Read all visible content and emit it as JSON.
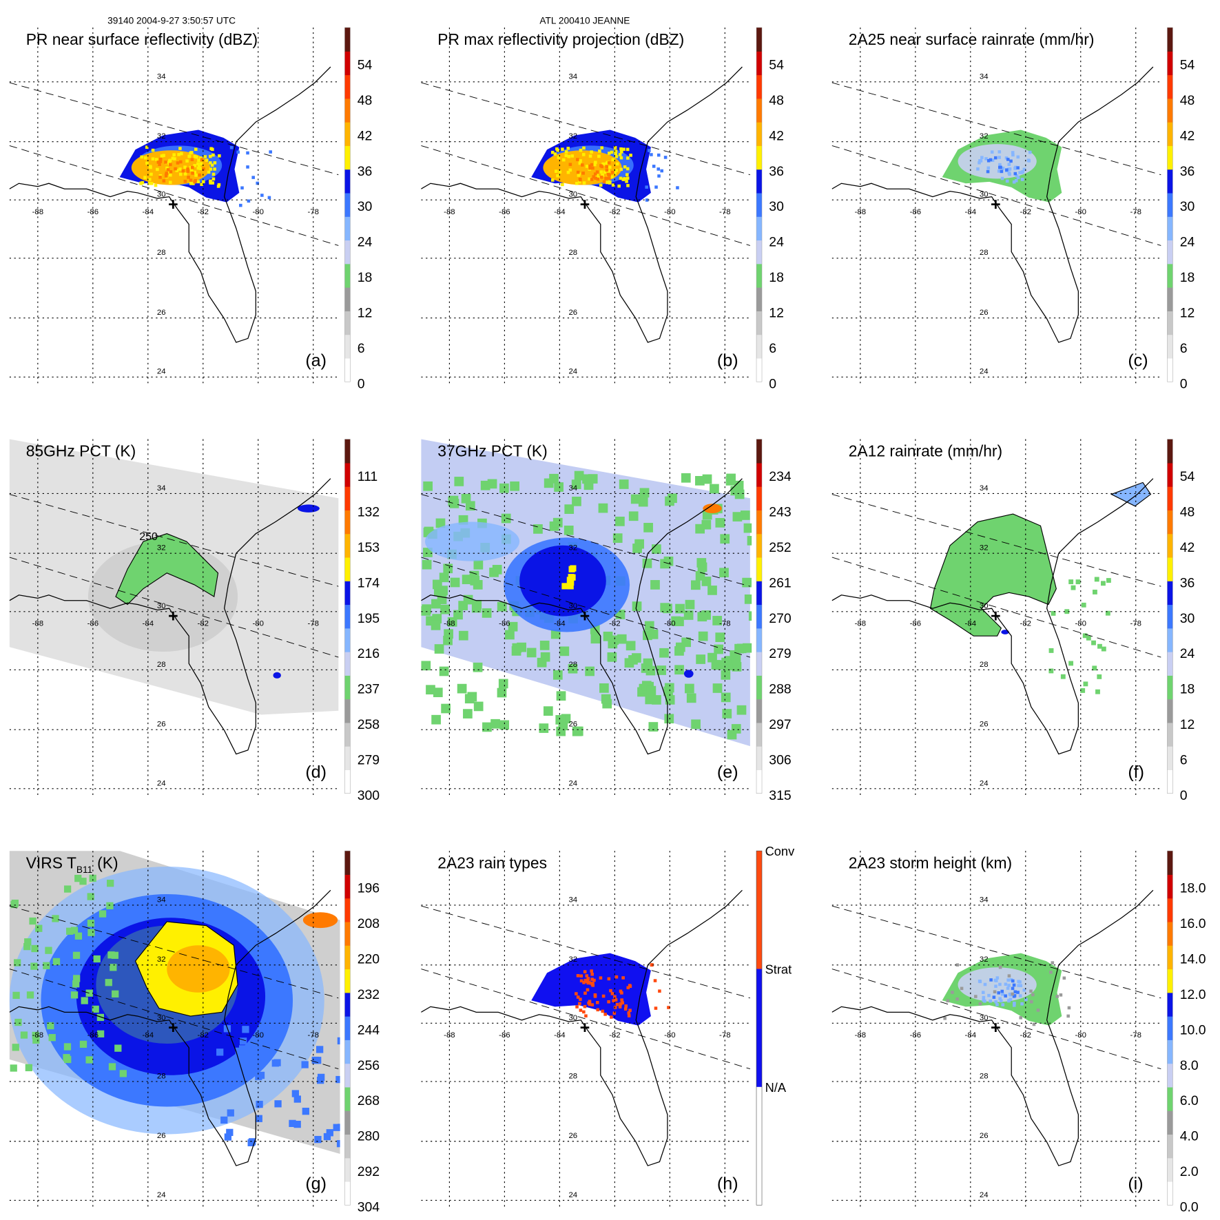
{
  "header": {
    "orbit_time": "39140 2004-9-27 3:50:57 UTC",
    "storm": "ATL 200410 JEANNE"
  },
  "axes": {
    "lon_labels": [
      "-88",
      "-86",
      "-84",
      "-82",
      "-80",
      "-78"
    ],
    "lat_labels": [
      "34",
      "32",
      "30",
      "28",
      "26",
      "24"
    ]
  },
  "palette": [
    "#ffffff",
    "#e6e6e6",
    "#c8c8c8",
    "#9a9a9a",
    "#6fd36f",
    "#c9cff2",
    "#86b6ff",
    "#3c78ff",
    "#0a14e6",
    "#fff000",
    "#ffb400",
    "#ff7a00",
    "#ff3a00",
    "#d00000",
    "#5c1810"
  ],
  "panels": [
    {
      "id": "a",
      "letter": "(a)",
      "title": "PR near surface reflectivity (dBZ)",
      "ticks": [
        "54",
        "48",
        "42",
        "36",
        "30",
        "24",
        "18",
        "12",
        "6",
        "0"
      ]
    },
    {
      "id": "b",
      "letter": "(b)",
      "title": "PR max reflectivity projection (dBZ)",
      "ticks": [
        "54",
        "48",
        "42",
        "36",
        "30",
        "24",
        "18",
        "12",
        "6",
        "0"
      ]
    },
    {
      "id": "c",
      "letter": "(c)",
      "title": "2A25 near surface rainrate (mm/hr)",
      "ticks": [
        "54",
        "48",
        "42",
        "36",
        "30",
        "24",
        "18",
        "12",
        "6",
        "0"
      ]
    },
    {
      "id": "d",
      "letter": "(d)",
      "title": "85GHz PCT (K)",
      "ticks": [
        "111",
        "132",
        "153",
        "174",
        "195",
        "216",
        "237",
        "258",
        "279",
        "300"
      ],
      "contour_label": "250"
    },
    {
      "id": "e",
      "letter": "(e)",
      "title": "37GHz PCT (K)",
      "ticks": [
        "234",
        "243",
        "252",
        "261",
        "270",
        "279",
        "288",
        "297",
        "306",
        "315"
      ]
    },
    {
      "id": "f",
      "letter": "(f)",
      "title": "2A12 rainrate (mm/hr)",
      "ticks": [
        "54",
        "48",
        "42",
        "36",
        "30",
        "24",
        "18",
        "12",
        "6",
        "0"
      ]
    },
    {
      "id": "g",
      "letter": "(g)",
      "title": "VIRS T",
      "title_sub": "B11",
      "title_unit": "(K)",
      "ticks": [
        "196",
        "208",
        "220",
        "232",
        "244",
        "256",
        "268",
        "280",
        "292",
        "304"
      ]
    },
    {
      "id": "h",
      "letter": "(h)",
      "title": "2A23 rain types",
      "ticks": [
        "Conv",
        "Strat",
        "N/A"
      ],
      "type_colors": [
        "#ff4a10",
        "#1010f0",
        "#ffffff"
      ]
    },
    {
      "id": "i",
      "letter": "(i)",
      "title": "2A23 storm height (km)",
      "ticks": [
        "18.0",
        "16.0",
        "14.0",
        "12.0",
        "10.0",
        "8.0",
        "6.0",
        "4.0",
        "2.0",
        "0.0"
      ]
    }
  ]
}
